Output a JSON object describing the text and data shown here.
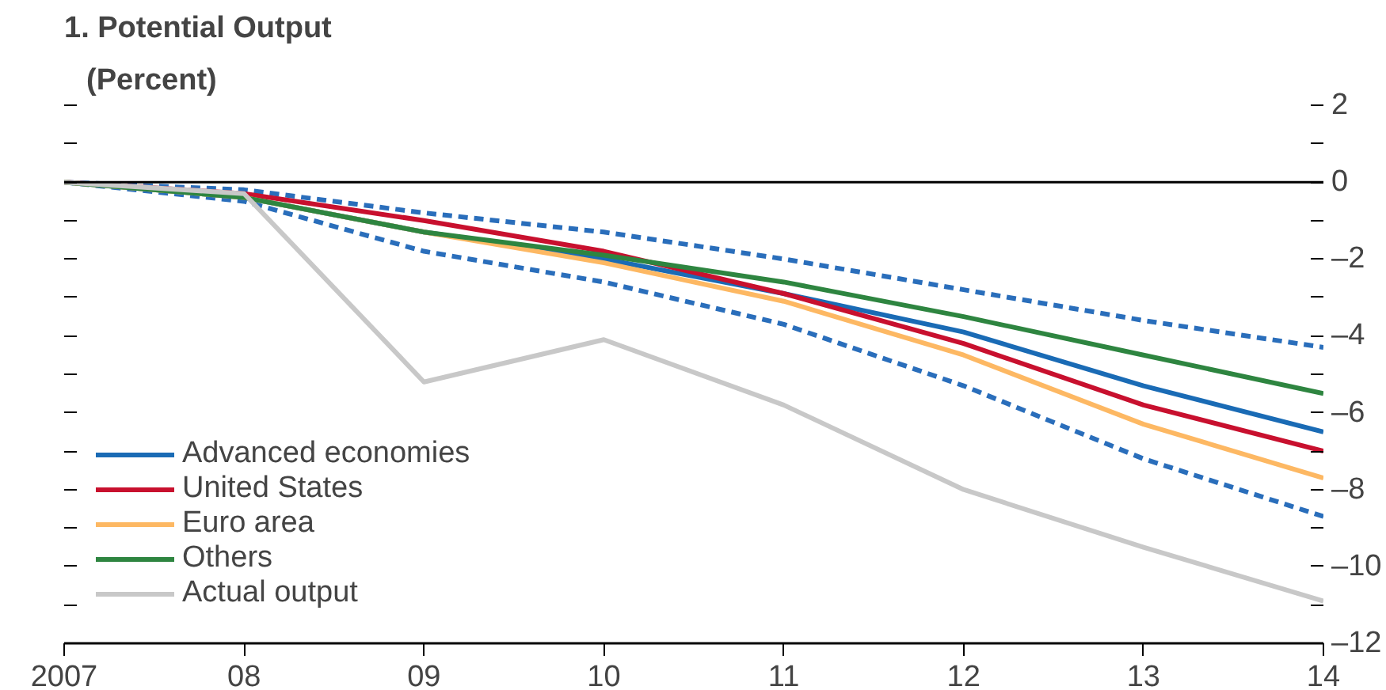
{
  "chart_data": {
    "type": "line",
    "title": "1. Potential Output",
    "subtitle": "(Percent)",
    "x": [
      2007,
      2008,
      2009,
      2010,
      2011,
      2012,
      2013,
      2014
    ],
    "series": [
      {
        "color": "#2a6ebb",
        "line_style": "dashed",
        "values": [
          0,
          -0.2,
          -0.8,
          -1.3,
          -2.0,
          -2.8,
          -3.6,
          -4.3
        ]
      },
      {
        "color": "#2a6ebb",
        "line_style": "dashed",
        "values": [
          0,
          -0.5,
          -1.8,
          -2.6,
          -3.7,
          -5.3,
          -7.2,
          -8.7
        ]
      },
      {
        "name": "Advanced economies",
        "color": "#1a6bb5",
        "values": [
          0,
          -0.4,
          -1.3,
          -2.0,
          -2.9,
          -3.9,
          -5.3,
          -6.5
        ]
      },
      {
        "name": "United States",
        "color": "#c8102e",
        "values": [
          0,
          -0.3,
          -1.0,
          -1.8,
          -2.9,
          -4.2,
          -5.8,
          -7.0
        ]
      },
      {
        "name": "Euro area",
        "color": "#fdb863",
        "values": [
          0,
          -0.4,
          -1.3,
          -2.1,
          -3.1,
          -4.5,
          -6.3,
          -7.7
        ]
      },
      {
        "name": "Others",
        "color": "#2e8540",
        "values": [
          0,
          -0.4,
          -1.3,
          -1.9,
          -2.6,
          -3.5,
          -4.5,
          -5.5
        ]
      },
      {
        "name": "Actual output",
        "color": "#c8c8c8",
        "values": [
          0,
          -0.3,
          -5.2,
          -4.1,
          -5.8,
          -8.0,
          -9.5,
          -10.9
        ]
      }
    ],
    "xlim": [
      2007,
      2014
    ],
    "xticks": [
      2007,
      {
        "value": 2008,
        "label": "08"
      },
      {
        "value": 2009,
        "label": "09"
      },
      {
        "value": 2010,
        "label": "10"
      },
      {
        "value": 2011,
        "label": "11"
      },
      {
        "value": 2012,
        "label": "12"
      },
      {
        "value": 2013,
        "label": "13"
      },
      {
        "value": 2014,
        "label": "14"
      }
    ],
    "ylim": [
      -12,
      2
    ],
    "yticks": [
      {
        "value": -12,
        "label": "–12"
      },
      {
        "value": -11,
        "label": null
      },
      {
        "value": -10,
        "label": "–10"
      },
      {
        "value": -9,
        "label": null
      },
      {
        "value": -8,
        "label": "–8"
      },
      {
        "value": -7,
        "label": null
      },
      {
        "value": -6,
        "label": "–6"
      },
      {
        "value": -5,
        "label": null
      },
      {
        "value": -4,
        "label": "–4"
      },
      {
        "value": -3,
        "label": null
      },
      {
        "value": -2,
        "label": "–2"
      },
      {
        "value": -1,
        "label": null
      },
      0,
      {
        "value": 1,
        "label": null
      },
      2
    ],
    "ref_lines": [
      {
        "axis": "y",
        "value": 0,
        "color": "#000000"
      }
    ],
    "grid": false,
    "legend": "bottom left",
    "marker": "none"
  }
}
